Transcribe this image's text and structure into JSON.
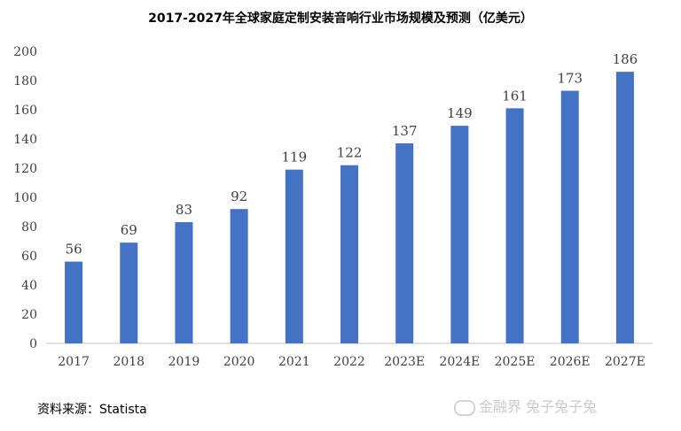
{
  "chart_data": {
    "type": "bar",
    "title": "2017-2027年全球家庭定制安装音响行业市场规模及预测（亿美元）",
    "categories": [
      "2017",
      "2018",
      "2019",
      "2020",
      "2021",
      "2022",
      "2023E",
      "2024E",
      "2025E",
      "2026E",
      "2027E"
    ],
    "values": [
      56,
      69,
      83,
      92,
      119,
      122,
      137,
      149,
      161,
      173,
      186
    ],
    "ylim": [
      0,
      200
    ],
    "yticks": [
      0,
      20,
      40,
      60,
      80,
      100,
      120,
      140,
      160,
      180,
      200
    ],
    "grid": false,
    "bar_color": "#4472c4",
    "xlabel": "",
    "ylabel": ""
  },
  "footer": {
    "source": "资料来源：Statista",
    "watermark": "金融界 兔子兔子兔"
  }
}
